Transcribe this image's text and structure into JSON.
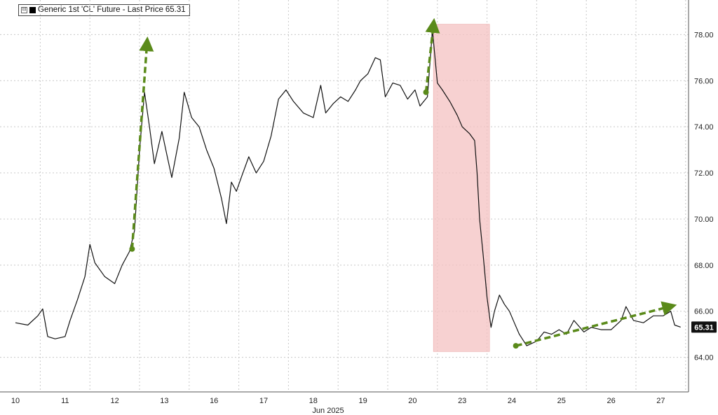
{
  "legend": {
    "toggle_glyph": "⊟",
    "label": "Generic 1st 'CL' Future - Last Price",
    "last_price_label": "65.31"
  },
  "chart_data": {
    "type": "line",
    "title": "",
    "xlabel": "Jun 2025",
    "ylabel": "",
    "ylim": [
      62.5,
      79.5
    ],
    "y_ticks": [
      64,
      66,
      68,
      70,
      72,
      74,
      76,
      78
    ],
    "y_tick_labels": [
      "64.00",
      "66.00",
      "68.00",
      "70.00",
      "72.00",
      "74.00",
      "76.00",
      "78.00"
    ],
    "x_categories": [
      "10",
      "11",
      "12",
      "13",
      "16",
      "17",
      "18",
      "19",
      "20",
      "23",
      "24",
      "25",
      "26",
      "27"
    ],
    "grid": true,
    "series": [
      {
        "name": "Generic 1st 'CL' Future - Last Price",
        "color": "#111111",
        "points": [
          [
            0.0,
            65.5
          ],
          [
            0.25,
            65.4
          ],
          [
            0.45,
            65.8
          ],
          [
            0.55,
            66.1
          ],
          [
            0.65,
            64.9
          ],
          [
            0.8,
            64.8
          ],
          [
            1.0,
            64.9
          ],
          [
            1.1,
            65.6
          ],
          [
            1.25,
            66.5
          ],
          [
            1.4,
            67.5
          ],
          [
            1.5,
            68.9
          ],
          [
            1.6,
            68.1
          ],
          [
            1.8,
            67.5
          ],
          [
            2.0,
            67.2
          ],
          [
            2.15,
            68.0
          ],
          [
            2.3,
            68.6
          ],
          [
            2.4,
            69.5
          ],
          [
            2.5,
            73.0
          ],
          [
            2.6,
            75.5
          ],
          [
            2.7,
            74.0
          ],
          [
            2.8,
            72.4
          ],
          [
            2.95,
            73.8
          ],
          [
            3.05,
            72.8
          ],
          [
            3.15,
            71.8
          ],
          [
            3.3,
            73.5
          ],
          [
            3.4,
            75.5
          ],
          [
            3.55,
            74.4
          ],
          [
            3.7,
            74.0
          ],
          [
            3.85,
            73.0
          ],
          [
            4.0,
            72.2
          ],
          [
            4.15,
            70.9
          ],
          [
            4.25,
            69.8
          ],
          [
            4.35,
            71.6
          ],
          [
            4.45,
            71.2
          ],
          [
            4.55,
            71.8
          ],
          [
            4.7,
            72.7
          ],
          [
            4.85,
            72.0
          ],
          [
            5.0,
            72.5
          ],
          [
            5.15,
            73.6
          ],
          [
            5.3,
            75.2
          ],
          [
            5.45,
            75.6
          ],
          [
            5.6,
            75.1
          ],
          [
            5.8,
            74.6
          ],
          [
            6.0,
            74.4
          ],
          [
            6.15,
            75.8
          ],
          [
            6.25,
            74.6
          ],
          [
            6.4,
            75.0
          ],
          [
            6.55,
            75.3
          ],
          [
            6.7,
            75.1
          ],
          [
            6.85,
            75.6
          ],
          [
            6.95,
            76.0
          ],
          [
            7.1,
            76.3
          ],
          [
            7.25,
            77.0
          ],
          [
            7.35,
            76.9
          ],
          [
            7.45,
            75.3
          ],
          [
            7.6,
            75.9
          ],
          [
            7.75,
            75.8
          ],
          [
            7.9,
            75.2
          ],
          [
            8.05,
            75.6
          ],
          [
            8.15,
            74.9
          ],
          [
            8.3,
            75.3
          ],
          [
            8.4,
            78.2
          ],
          [
            8.5,
            75.9
          ],
          [
            8.6,
            75.6
          ],
          [
            8.75,
            75.1
          ],
          [
            8.9,
            74.5
          ],
          [
            9.0,
            74.0
          ],
          [
            9.15,
            73.7
          ],
          [
            9.25,
            73.4
          ],
          [
            9.3,
            72.0
          ],
          [
            9.35,
            70.0
          ],
          [
            9.42,
            68.5
          ],
          [
            9.5,
            66.6
          ],
          [
            9.58,
            65.3
          ],
          [
            9.65,
            66.0
          ],
          [
            9.75,
            66.7
          ],
          [
            9.85,
            66.3
          ],
          [
            9.95,
            66.0
          ],
          [
            10.05,
            65.5
          ],
          [
            10.15,
            65.0
          ],
          [
            10.3,
            64.5
          ],
          [
            10.5,
            64.7
          ],
          [
            10.65,
            65.1
          ],
          [
            10.8,
            65.0
          ],
          [
            10.95,
            65.2
          ],
          [
            11.1,
            65.0
          ],
          [
            11.25,
            65.6
          ],
          [
            11.45,
            65.1
          ],
          [
            11.6,
            65.3
          ],
          [
            11.8,
            65.2
          ],
          [
            12.0,
            65.2
          ],
          [
            12.2,
            65.6
          ],
          [
            12.3,
            66.2
          ],
          [
            12.45,
            65.6
          ],
          [
            12.65,
            65.5
          ],
          [
            12.85,
            65.8
          ],
          [
            13.05,
            65.8
          ],
          [
            13.2,
            66.0
          ],
          [
            13.28,
            65.4
          ],
          [
            13.4,
            65.31
          ]
        ]
      }
    ],
    "shaded_region": {
      "x_start": 8.42,
      "x_end": 9.55,
      "y_start": 64.25,
      "y_end": 78.45,
      "color": "#f4c2c2"
    },
    "annotations": [
      {
        "type": "arrow",
        "color": "#5a8a1a",
        "from": [
          2.35,
          68.7
        ],
        "to": [
          2.65,
          77.6
        ]
      },
      {
        "type": "arrow",
        "color": "#5a8a1a",
        "from": [
          8.27,
          75.5
        ],
        "to": [
          8.42,
          78.4
        ]
      },
      {
        "type": "arrow",
        "color": "#5a8a1a",
        "from": [
          10.08,
          64.5
        ],
        "to": [
          13.18,
          66.2
        ]
      }
    ],
    "last_value": 65.31
  },
  "colors": {
    "grid": "#c8c8c8",
    "axis": "#555555",
    "line": "#111111",
    "accent_blue": "#2a7fd4",
    "badge": "#111111"
  }
}
